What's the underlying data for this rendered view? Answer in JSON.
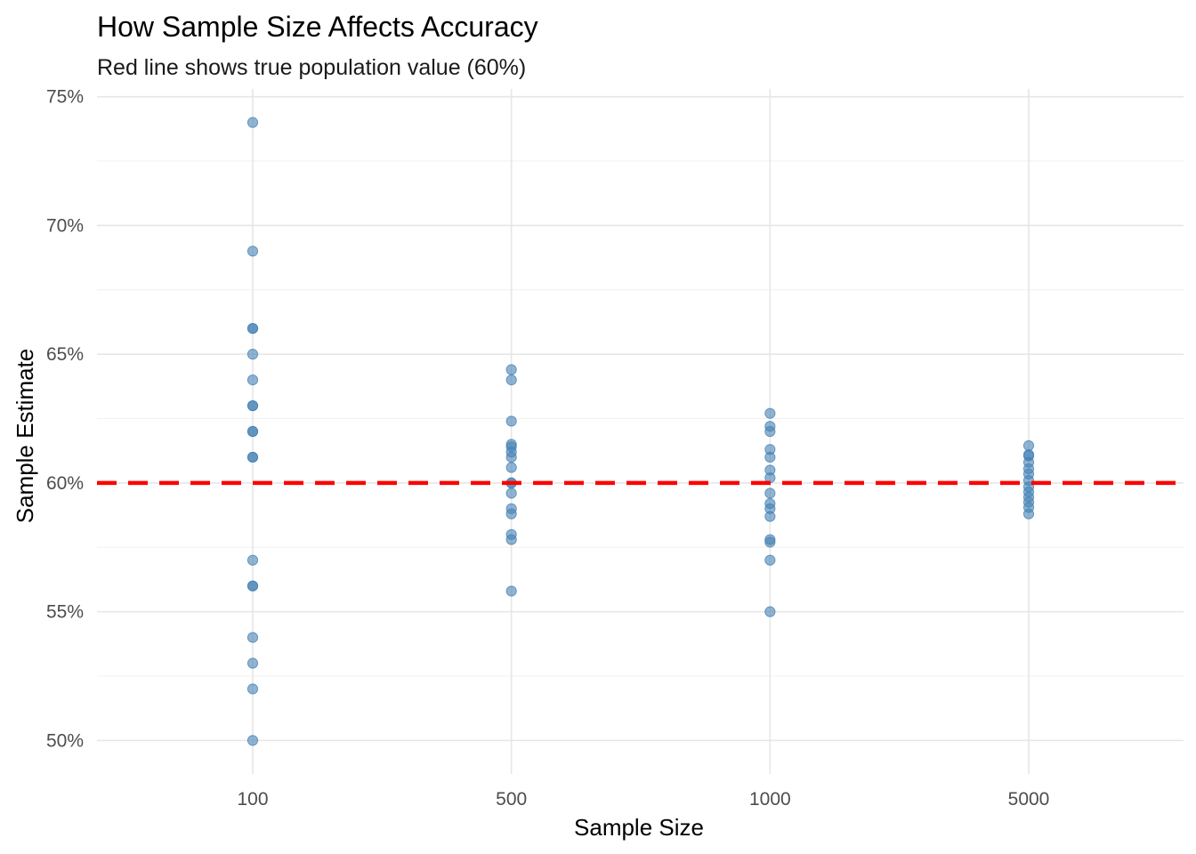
{
  "chart_data": {
    "type": "scatter",
    "title": "How Sample Size Affects Accuracy",
    "subtitle": "Red line shows true population value (60%)",
    "xlabel": "Sample Size",
    "ylabel": "Sample Estimate",
    "categories": [
      "100",
      "500",
      "1000",
      "5000"
    ],
    "ylim": [
      0.487,
      0.753
    ],
    "y_ticks": [
      0.5,
      0.55,
      0.6,
      0.65,
      0.7,
      0.75
    ],
    "y_tick_labels": [
      "50%",
      "55%",
      "60%",
      "65%",
      "70%",
      "75%"
    ],
    "grid": true,
    "reference_line": {
      "value": 0.6,
      "style": "dashed",
      "color": "#ff0000"
    },
    "point_color": "#4682b4",
    "points": [
      {
        "x": "100",
        "y": 0.74
      },
      {
        "x": "100",
        "y": 0.69
      },
      {
        "x": "100",
        "y": 0.66
      },
      {
        "x": "100",
        "y": 0.66
      },
      {
        "x": "100",
        "y": 0.65
      },
      {
        "x": "100",
        "y": 0.64
      },
      {
        "x": "100",
        "y": 0.63
      },
      {
        "x": "100",
        "y": 0.63
      },
      {
        "x": "100",
        "y": 0.62
      },
      {
        "x": "100",
        "y": 0.62
      },
      {
        "x": "100",
        "y": 0.61
      },
      {
        "x": "100",
        "y": 0.61
      },
      {
        "x": "100",
        "y": 0.57
      },
      {
        "x": "100",
        "y": 0.56
      },
      {
        "x": "100",
        "y": 0.56
      },
      {
        "x": "100",
        "y": 0.54
      },
      {
        "x": "100",
        "y": 0.53
      },
      {
        "x": "100",
        "y": 0.52
      },
      {
        "x": "100",
        "y": 0.5
      },
      {
        "x": "500",
        "y": 0.644
      },
      {
        "x": "500",
        "y": 0.64
      },
      {
        "x": "500",
        "y": 0.624
      },
      {
        "x": "500",
        "y": 0.615
      },
      {
        "x": "500",
        "y": 0.614
      },
      {
        "x": "500",
        "y": 0.612
      },
      {
        "x": "500",
        "y": 0.61
      },
      {
        "x": "500",
        "y": 0.606
      },
      {
        "x": "500",
        "y": 0.6
      },
      {
        "x": "500",
        "y": 0.6
      },
      {
        "x": "500",
        "y": 0.596
      },
      {
        "x": "500",
        "y": 0.59
      },
      {
        "x": "500",
        "y": 0.588
      },
      {
        "x": "500",
        "y": 0.58
      },
      {
        "x": "500",
        "y": 0.578
      },
      {
        "x": "500",
        "y": 0.558
      },
      {
        "x": "1000",
        "y": 0.627
      },
      {
        "x": "1000",
        "y": 0.622
      },
      {
        "x": "1000",
        "y": 0.62
      },
      {
        "x": "1000",
        "y": 0.613
      },
      {
        "x": "1000",
        "y": 0.61
      },
      {
        "x": "1000",
        "y": 0.605
      },
      {
        "x": "1000",
        "y": 0.602
      },
      {
        "x": "1000",
        "y": 0.596
      },
      {
        "x": "1000",
        "y": 0.592
      },
      {
        "x": "1000",
        "y": 0.59
      },
      {
        "x": "1000",
        "y": 0.587
      },
      {
        "x": "1000",
        "y": 0.578
      },
      {
        "x": "1000",
        "y": 0.577
      },
      {
        "x": "1000",
        "y": 0.57
      },
      {
        "x": "1000",
        "y": 0.55
      },
      {
        "x": "5000",
        "y": 0.6145
      },
      {
        "x": "5000",
        "y": 0.611
      },
      {
        "x": "5000",
        "y": 0.6105
      },
      {
        "x": "5000",
        "y": 0.608
      },
      {
        "x": "5000",
        "y": 0.6055
      },
      {
        "x": "5000",
        "y": 0.6035
      },
      {
        "x": "5000",
        "y": 0.601
      },
      {
        "x": "5000",
        "y": 0.5985
      },
      {
        "x": "5000",
        "y": 0.5965
      },
      {
        "x": "5000",
        "y": 0.5945
      },
      {
        "x": "5000",
        "y": 0.5925
      },
      {
        "x": "5000",
        "y": 0.5905
      },
      {
        "x": "5000",
        "y": 0.588
      }
    ]
  }
}
